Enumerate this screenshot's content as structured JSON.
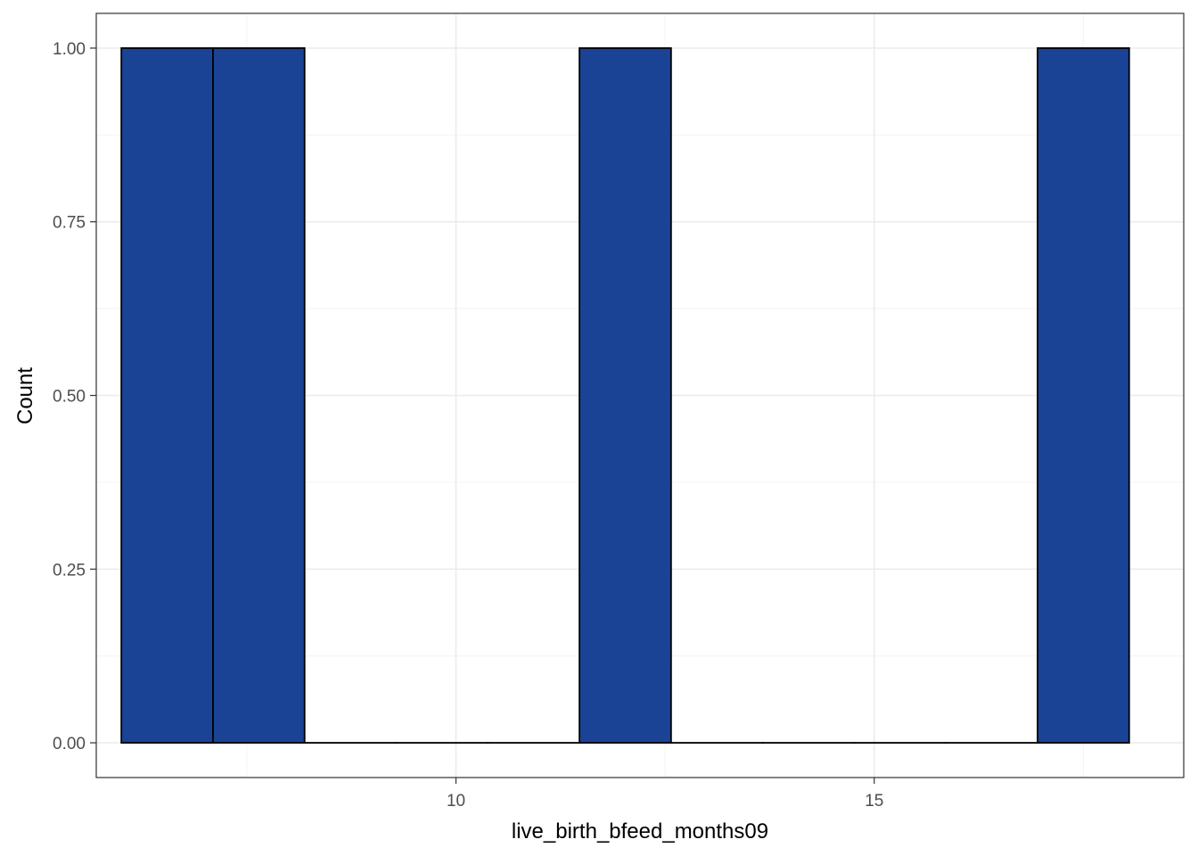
{
  "chart_data": {
    "type": "bar",
    "title": "",
    "xlabel": "live_birth_bfeed_months09",
    "ylabel": "Count",
    "xlim": [
      5.7,
      18.7
    ],
    "ylim": [
      -0.05,
      1.05
    ],
    "x_ticks": [
      {
        "value": 10,
        "label": "10"
      },
      {
        "value": 15,
        "label": "15"
      }
    ],
    "y_ticks": [
      {
        "value": 0,
        "label": "0.00"
      },
      {
        "value": 0.25,
        "label": "0.25"
      },
      {
        "value": 0.5,
        "label": "0.50"
      },
      {
        "value": 0.75,
        "label": "0.75"
      },
      {
        "value": 1,
        "label": "1.00"
      }
    ],
    "grid": true,
    "bin_width": 1.0952,
    "bins": [
      {
        "start": 6.0,
        "count": 1
      },
      {
        "start": 7.0952,
        "count": 1
      },
      {
        "start": 8.1905,
        "count": 0
      },
      {
        "start": 9.2857,
        "count": 0
      },
      {
        "start": 10.381,
        "count": 0
      },
      {
        "start": 11.4762,
        "count": 1
      },
      {
        "start": 12.5714,
        "count": 0
      },
      {
        "start": 13.6667,
        "count": 0
      },
      {
        "start": 14.7619,
        "count": 0
      },
      {
        "start": 15.8571,
        "count": 0
      },
      {
        "start": 16.9524,
        "count": 1
      }
    ],
    "colors": {
      "fill": "#1a4396",
      "outline": "#000000",
      "panel_border": "#333333",
      "grid_major": "#ebebeb",
      "grid_minor": "#f5f5f5"
    }
  }
}
